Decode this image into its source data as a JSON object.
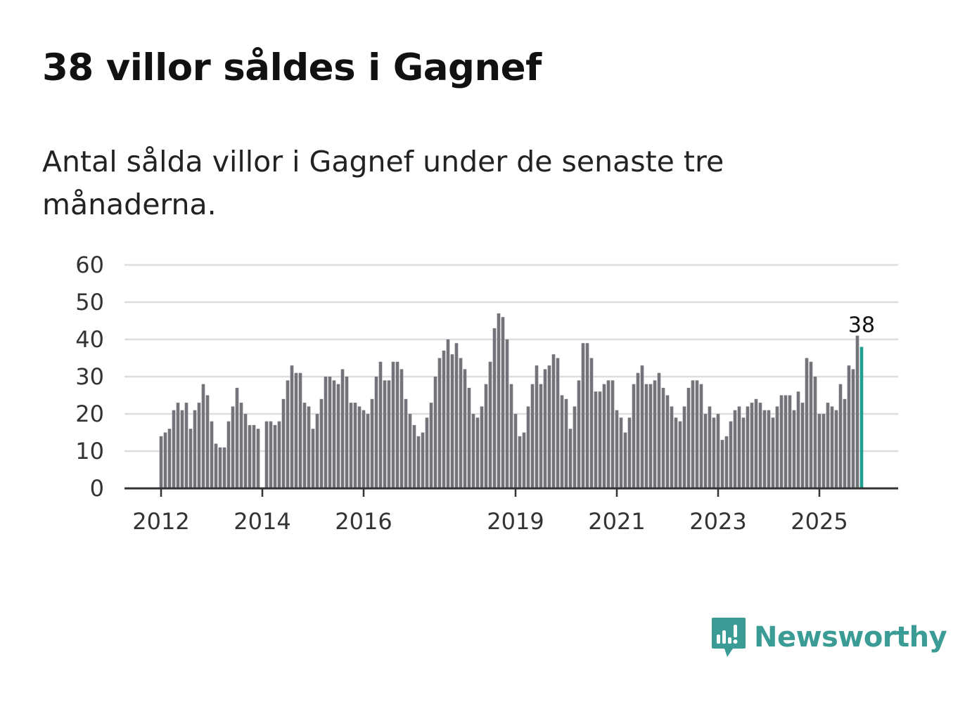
{
  "title": "38 villor såldes i Gagnef",
  "subtitle": "Antal sålda villor i Gagnef under de senaste tre månaderna.",
  "brand": {
    "name": "Newsworthy",
    "icon": "chart-bubble-icon",
    "color": "#3a9c95"
  },
  "colors": {
    "bar": "#74737a",
    "highlight": "#1f9e94",
    "grid": "#dddddd",
    "axis": "#333333"
  },
  "chart_data": {
    "type": "bar",
    "start": "2012-01",
    "ylim": [
      0,
      60
    ],
    "yticks": [
      0,
      10,
      20,
      30,
      40,
      50,
      60
    ],
    "xticks": [
      {
        "label": "2012",
        "index": 0
      },
      {
        "label": "2014",
        "index": 24
      },
      {
        "label": "2016",
        "index": 48
      },
      {
        "label": "2019",
        "index": 84
      },
      {
        "label": "2021",
        "index": 108
      },
      {
        "label": "2023",
        "index": 132
      },
      {
        "label": "2025",
        "index": 156
      }
    ],
    "grid": true,
    "highlight_index": 166,
    "highlight_label": "38",
    "values": [
      14,
      15,
      16,
      21,
      23,
      21,
      23,
      16,
      21,
      23,
      28,
      25,
      18,
      12,
      11,
      11,
      18,
      22,
      27,
      23,
      20,
      17,
      17,
      16,
      0,
      18,
      18,
      17,
      18,
      24,
      29,
      33,
      31,
      31,
      23,
      22,
      16,
      20,
      24,
      30,
      30,
      29,
      28,
      32,
      30,
      23,
      23,
      22,
      21,
      20,
      24,
      30,
      34,
      29,
      29,
      34,
      34,
      32,
      24,
      20,
      17,
      14,
      15,
      19,
      23,
      30,
      35,
      37,
      40,
      36,
      39,
      35,
      32,
      27,
      20,
      19,
      22,
      28,
      34,
      43,
      47,
      46,
      40,
      28,
      20,
      14,
      15,
      22,
      28,
      33,
      28,
      32,
      33,
      36,
      35,
      25,
      24,
      16,
      22,
      29,
      39,
      39,
      35,
      26,
      26,
      28,
      29,
      29,
      21,
      19,
      15,
      19,
      28,
      31,
      33,
      28,
      28,
      29,
      31,
      27,
      25,
      22,
      19,
      18,
      22,
      27,
      29,
      29,
      28,
      20,
      22,
      19,
      20,
      13,
      14,
      18,
      21,
      22,
      19,
      22,
      23,
      24,
      23,
      21,
      21,
      19,
      22,
      25,
      25,
      25,
      21,
      26,
      23,
      35,
      34,
      30,
      20,
      20,
      23,
      22,
      21,
      28,
      24,
      33,
      32,
      41,
      38
    ]
  }
}
